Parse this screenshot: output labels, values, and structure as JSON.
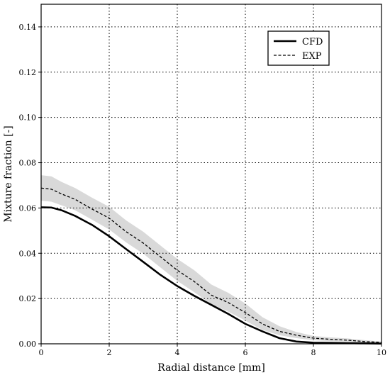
{
  "chart_data": {
    "type": "line",
    "xlabel": "Radial distance [mm]",
    "ylabel": "Mixture fraction [-]",
    "xlim": [
      0,
      10
    ],
    "ylim": [
      0,
      0.15
    ],
    "x_ticks": [
      0,
      2,
      4,
      6,
      8,
      10
    ],
    "x_tick_labels": [
      "0",
      "2",
      "4",
      "6",
      "8",
      "10"
    ],
    "y_ticks": [
      0,
      0.02,
      0.04,
      0.06,
      0.08,
      0.1,
      0.12,
      0.14
    ],
    "y_tick_labels": [
      "0.00",
      "0.02",
      "0.04",
      "0.06",
      "0.08",
      "0.10",
      "0.12",
      "0.14"
    ],
    "grid": true,
    "legend_position": "top-right",
    "series": [
      {
        "name": "CFD",
        "style": "solid",
        "color": "#000000",
        "x": [
          0,
          0.3,
          0.6,
          1.0,
          1.5,
          2.0,
          2.5,
          3.0,
          3.5,
          4.0,
          4.5,
          5.0,
          5.5,
          6.0,
          6.5,
          7.0,
          7.5,
          8.0,
          8.5,
          9.0,
          9.5,
          10.0
        ],
        "values": [
          0.0603,
          0.0602,
          0.059,
          0.0565,
          0.0525,
          0.0475,
          0.0418,
          0.0362,
          0.0305,
          0.0255,
          0.0212,
          0.0172,
          0.0132,
          0.0088,
          0.0055,
          0.0025,
          0.001,
          0.0005,
          0.0004,
          0.0003,
          0.0002,
          0.0001
        ]
      },
      {
        "name": "EXP",
        "style": "dashed",
        "color": "#000000",
        "x": [
          0,
          0.3,
          0.6,
          1.0,
          1.5,
          2.0,
          2.5,
          3.0,
          3.5,
          4.0,
          4.5,
          5.0,
          5.5,
          6.0,
          6.5,
          7.0,
          7.5,
          8.0,
          8.5,
          9.0,
          9.5,
          10.0
        ],
        "values": [
          0.0688,
          0.0683,
          0.0662,
          0.0638,
          0.0595,
          0.0555,
          0.0495,
          0.0445,
          0.0385,
          0.0325,
          0.0275,
          0.0215,
          0.0182,
          0.0138,
          0.0088,
          0.0055,
          0.0038,
          0.0025,
          0.002,
          0.0016,
          0.001,
          0.0006
        ],
        "band_lower": [
          0.0632,
          0.0628,
          0.0612,
          0.059,
          0.0548,
          0.0505,
          0.0448,
          0.0398,
          0.0338,
          0.0278,
          0.0228,
          0.0175,
          0.0142,
          0.0102,
          0.0062,
          0.0038,
          0.0025,
          0.0016,
          0.0012,
          0.001,
          0.0006,
          0.0003
        ],
        "band_upper": [
          0.0745,
          0.074,
          0.0715,
          0.0688,
          0.0645,
          0.0605,
          0.0545,
          0.0495,
          0.0435,
          0.0375,
          0.0325,
          0.0262,
          0.0225,
          0.0178,
          0.0118,
          0.0078,
          0.0052,
          0.0035,
          0.0028,
          0.0024,
          0.0016,
          0.001
        ],
        "band_color": "#d9d9d9"
      }
    ]
  }
}
